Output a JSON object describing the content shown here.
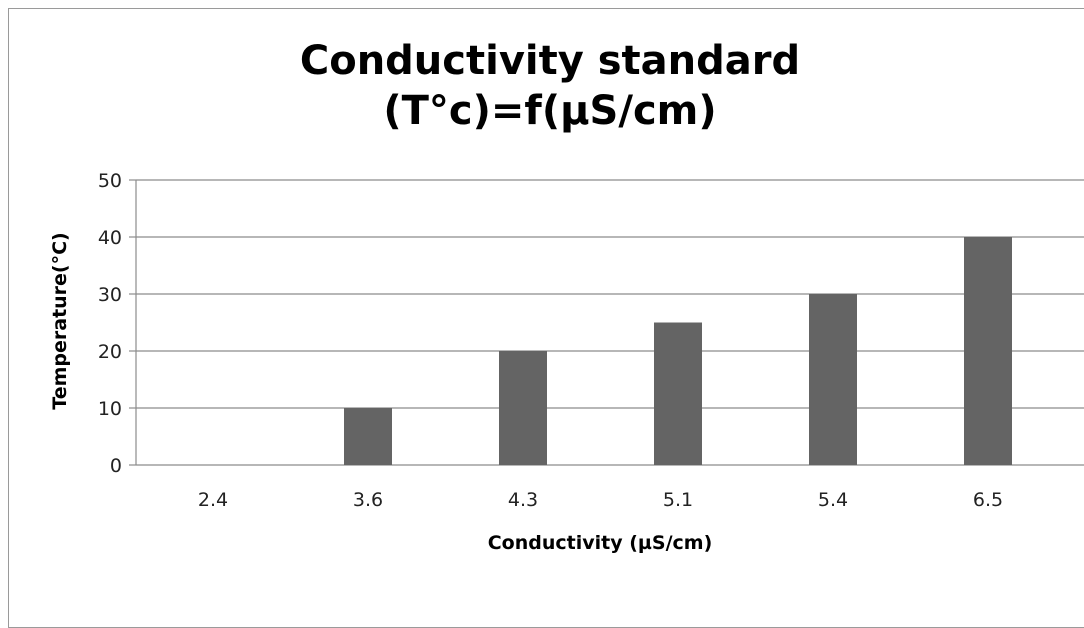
{
  "chart_data": {
    "type": "bar",
    "title": [
      "Conductivity standard",
      "(T°c)=f(µS/cm)"
    ],
    "xlabel": "Conductivity (µS/cm)",
    "ylabel": "Temperature(°C)",
    "categories": [
      "2.4",
      "3.6",
      "4.3",
      "5.1",
      "5.4",
      "6.5"
    ],
    "values": [
      0,
      10,
      20,
      25,
      30,
      40
    ],
    "ylim": [
      0,
      50
    ],
    "yticks": [
      "0",
      "10",
      "20",
      "30",
      "40",
      "50"
    ],
    "grid": true,
    "legend": "none",
    "bar_color": "#646464",
    "grid_color": "#8c8c8c"
  }
}
